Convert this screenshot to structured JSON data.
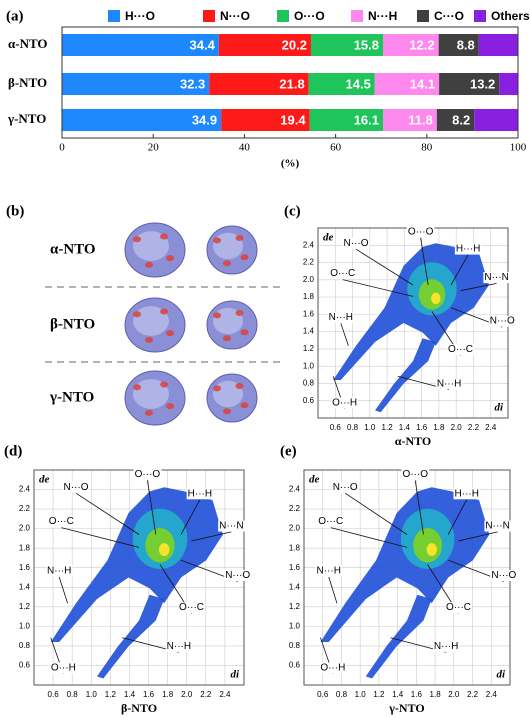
{
  "chart_data": {
    "type": "bar",
    "orientation": "horizontal",
    "stacked": true,
    "label": "(a)",
    "categories": [
      "α-NTO",
      "β-NTO",
      "γ-NTO"
    ],
    "series": [
      {
        "name": "H···O",
        "color": "#1e88ff",
        "values": [
          34.4,
          32.3,
          34.9
        ]
      },
      {
        "name": "N···O",
        "color": "#ff1a1a",
        "values": [
          20.2,
          21.8,
          19.4
        ]
      },
      {
        "name": "O···O",
        "color": "#1fc45a",
        "values": [
          15.8,
          14.5,
          16.1
        ]
      },
      {
        "name": "N···H",
        "color": "#ff88ee",
        "values": [
          12.2,
          14.1,
          11.8
        ]
      },
      {
        "name": "C···O",
        "color": "#404040",
        "values": [
          8.8,
          13.2,
          8.2
        ]
      },
      {
        "name": "Others",
        "color": "#8a1fe0",
        "values": [
          8.6,
          4.1,
          9.6
        ],
        "labels": false
      }
    ],
    "xlim": [
      0,
      100
    ],
    "xticks": [
      0,
      20,
      40,
      60,
      80,
      100
    ],
    "x_label": "(%)"
  },
  "panel_b": {
    "label": "(b)",
    "rows": [
      "α-NTO",
      "β-NTO",
      "γ-NTO"
    ]
  },
  "fingerprints": [
    {
      "label": "(c)",
      "caption": "α-NTO",
      "x_label": "di",
      "y_label": "de",
      "xlim": [
        0.4,
        2.6
      ],
      "ylim": [
        0.4,
        2.6
      ],
      "xticks": [
        0.6,
        0.8,
        {
          "value": 1,
          "label": "1.0"
        },
        1.2,
        1.4,
        1.6,
        1.8,
        {
          "value": 2,
          "label": "2.0"
        },
        2.2,
        2.4
      ],
      "yticks": [
        0.6,
        0.8,
        {
          "value": 1,
          "label": "1.0"
        },
        1.2,
        1.4,
        1.6,
        1.8,
        {
          "value": 2,
          "label": "2.0"
        },
        2.2,
        2.4
      ],
      "annotations": [
        "N···O",
        "O···O",
        "H···H",
        "O···C",
        "N···N",
        "N···H",
        "N···O",
        "O···C",
        "N···H",
        "O···H"
      ]
    },
    {
      "label": "(d)",
      "caption": "β-NTO",
      "x_label": "di",
      "y_label": "de",
      "xlim": [
        0.4,
        2.6
      ],
      "ylim": [
        0.4,
        2.6
      ],
      "xticks": [
        0.6,
        0.8,
        {
          "value": 1,
          "label": "1.0"
        },
        1.2,
        1.4,
        1.6,
        1.8,
        {
          "value": 2,
          "label": "2.0"
        },
        2.2,
        2.4
      ],
      "yticks": [
        0.6,
        0.8,
        {
          "value": 1,
          "label": "1.0"
        },
        1.2,
        1.4,
        1.6,
        1.8,
        {
          "value": 2,
          "label": "2.0"
        },
        2.2,
        2.4
      ],
      "annotations": [
        "N···O",
        "O···O",
        "H···H",
        "O···C",
        "N···N",
        "N···H",
        "N···O",
        "O···C",
        "N···H",
        "O···H"
      ]
    },
    {
      "label": "(e)",
      "caption": "γ-NTO",
      "x_label": "di",
      "y_label": "de",
      "xlim": [
        0.4,
        2.6
      ],
      "ylim": [
        0.4,
        2.6
      ],
      "xticks": [
        0.6,
        0.8,
        {
          "value": 1,
          "label": "1.0"
        },
        1.2,
        1.4,
        1.6,
        1.8,
        {
          "value": 2,
          "label": "2.0"
        },
        2.2,
        2.4
      ],
      "yticks": [
        0.6,
        0.8,
        {
          "value": 1,
          "label": "1.0"
        },
        1.2,
        1.4,
        1.6,
        1.8,
        {
          "value": 2,
          "label": "2.0"
        },
        2.2,
        2.4
      ],
      "annotations": [
        "N···O",
        "O···O",
        "H···H",
        "O···C",
        "N···N",
        "N···H",
        "N···O",
        "O···C",
        "N···H",
        "O···H"
      ]
    }
  ]
}
